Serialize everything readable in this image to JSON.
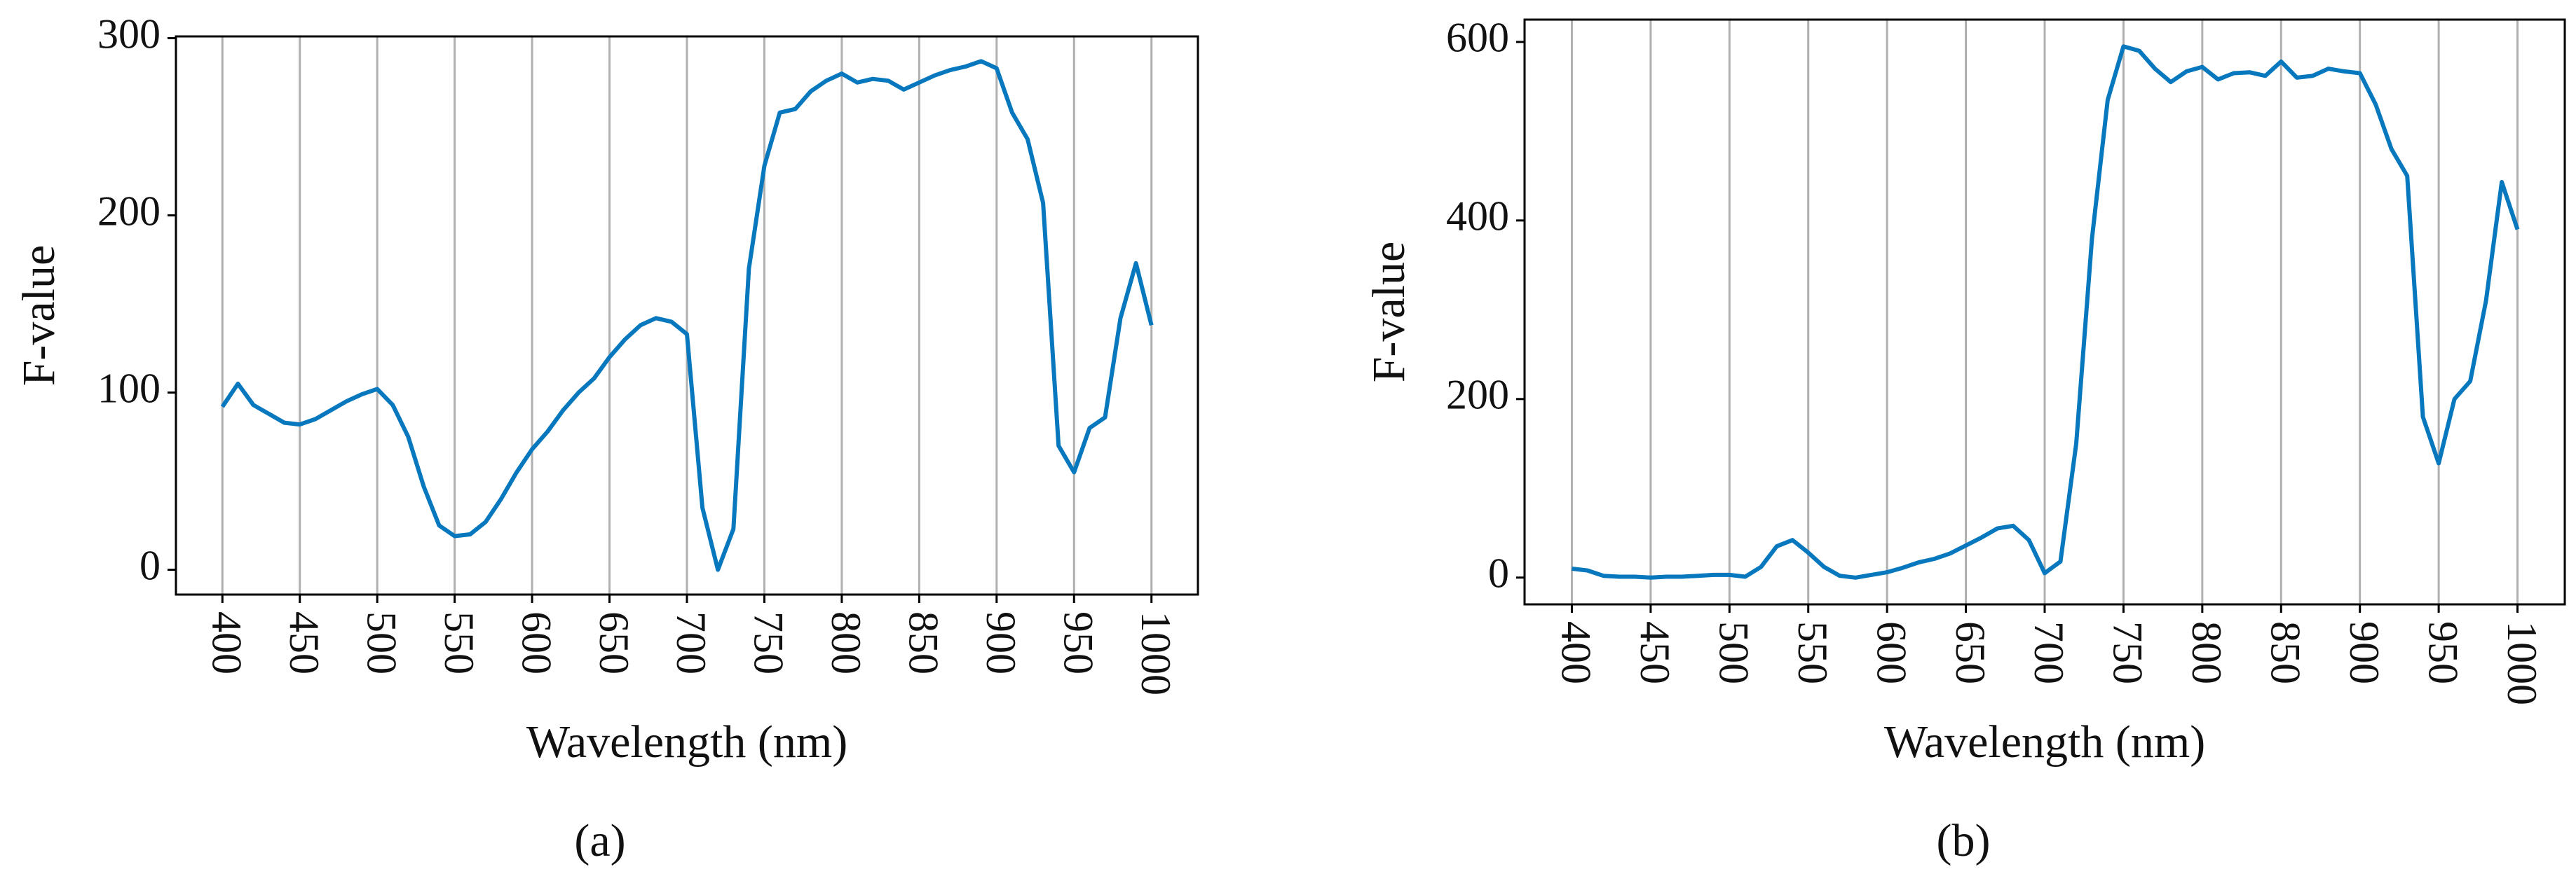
{
  "chart_data": [
    {
      "type": "line",
      "caption": "(a)",
      "x_label": "Wavelength (nm)",
      "y_label": "F-value",
      "x": [
        400,
        410,
        420,
        430,
        440,
        450,
        460,
        470,
        480,
        490,
        500,
        510,
        520,
        530,
        540,
        550,
        560,
        570,
        580,
        590,
        600,
        610,
        620,
        630,
        640,
        650,
        660,
        670,
        680,
        690,
        700,
        710,
        720,
        730,
        740,
        750,
        760,
        770,
        780,
        790,
        800,
        810,
        820,
        830,
        840,
        850,
        860,
        870,
        880,
        890,
        900,
        910,
        920,
        930,
        940,
        950,
        960,
        970,
        980,
        990,
        1000
      ],
      "series": [
        {
          "name": "F-value",
          "color": "#0878be",
          "values": [
            92,
            105,
            93,
            88,
            83,
            82,
            85,
            90,
            95,
            99,
            102,
            93,
            75,
            47,
            25,
            19,
            20,
            27,
            40,
            55,
            68,
            78,
            90,
            100,
            108,
            120,
            130,
            138,
            142,
            140,
            133,
            35,
            0,
            23,
            170,
            228,
            258,
            260,
            270,
            276,
            280,
            275,
            277,
            276,
            271,
            275,
            279,
            282,
            284,
            287,
            283,
            258,
            243,
            207,
            70,
            55,
            80,
            86,
            142,
            173,
            138
          ]
        }
      ],
      "xlim": [
        370,
        1030
      ],
      "xticks": [
        400,
        450,
        500,
        550,
        600,
        650,
        700,
        750,
        800,
        850,
        900,
        950,
        1000
      ],
      "ylim": [
        -14,
        301
      ],
      "yticks": [
        0,
        100,
        200,
        300
      ],
      "grid": "x"
    },
    {
      "type": "line",
      "caption": "(b)",
      "x_label": "Wavelength (nm)",
      "y_label": "F-value",
      "x": [
        400,
        410,
        420,
        430,
        440,
        450,
        460,
        470,
        480,
        490,
        500,
        510,
        520,
        530,
        540,
        550,
        560,
        570,
        580,
        590,
        600,
        610,
        620,
        630,
        640,
        650,
        660,
        670,
        680,
        690,
        700,
        710,
        720,
        730,
        740,
        750,
        760,
        770,
        780,
        790,
        800,
        810,
        820,
        830,
        840,
        850,
        860,
        870,
        880,
        890,
        900,
        910,
        920,
        930,
        940,
        950,
        960,
        970,
        980,
        990,
        1000
      ],
      "series": [
        {
          "name": "F-value",
          "color": "#0878be",
          "values": [
            10,
            8,
            2,
            1,
            1,
            0,
            1,
            1,
            2,
            3,
            3,
            1,
            12,
            35,
            42,
            28,
            12,
            2,
            0,
            3,
            6,
            11,
            17,
            21,
            27,
            36,
            45,
            55,
            58,
            42,
            5,
            18,
            150,
            380,
            535,
            595,
            590,
            570,
            555,
            567,
            572,
            558,
            565,
            566,
            562,
            578,
            560,
            562,
            570,
            567,
            565,
            530,
            480,
            450,
            180,
            128,
            200,
            220,
            310,
            443,
            390
          ]
        }
      ],
      "xlim": [
        370,
        1030
      ],
      "xticks": [
        400,
        450,
        500,
        550,
        600,
        650,
        700,
        750,
        800,
        850,
        900,
        950,
        1000
      ],
      "ylim": [
        -30,
        625
      ],
      "yticks": [
        0,
        200,
        400,
        600
      ],
      "grid": "x"
    }
  ]
}
